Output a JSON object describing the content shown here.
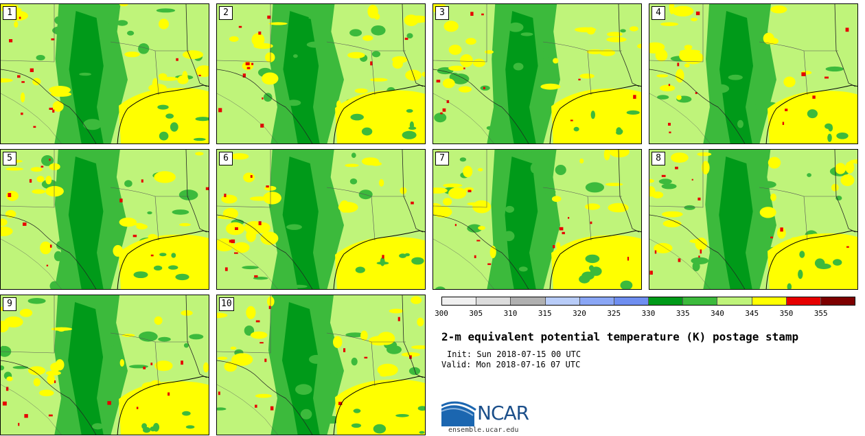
{
  "figure": {
    "title": "2-m equivalent potential temperature (K) postage stamp",
    "init_line": "Init: Sun 2018-07-15 00 UTC",
    "valid_line": "Valid: Mon 2018-07-16 07 UTC"
  },
  "panels": [
    "1",
    "2",
    "3",
    "4",
    "5",
    "6",
    "7",
    "8",
    "9",
    "10"
  ],
  "colorbar": {
    "colors": [
      "#f0f0f0",
      "#dcdcdc",
      "#b0b0b0",
      "#b8ccf8",
      "#8aa6f5",
      "#6f8ef0",
      "#009a19",
      "#3cba3c",
      "#bff47a",
      "#ffff00",
      "#e60000",
      "#7d0000"
    ],
    "tick_labels": [
      "300",
      "305",
      "310",
      "315",
      "320",
      "325",
      "330",
      "335",
      "340",
      "345",
      "350",
      "355"
    ]
  },
  "map_colors": {
    "base": "#bff47a",
    "dark_green": "#009a19",
    "mid_green": "#3cba3c",
    "yellow": "#ffff00",
    "red": "#e60000",
    "border": "#555555"
  },
  "logo": {
    "name": "NCAR",
    "url": "ensemble.ucar.edu"
  }
}
